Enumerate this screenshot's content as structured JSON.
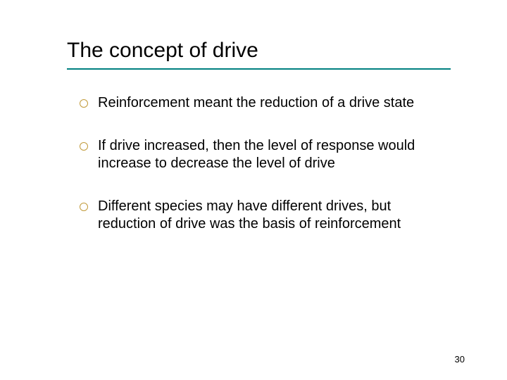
{
  "slide": {
    "title": "The concept of drive",
    "title_underline_color": "#008080",
    "bullet_ring_color": "#c19a3a",
    "bullets": [
      "Reinforcement meant the reduction of a drive state",
      "If drive increased, then the level of response would increase to decrease the level of drive",
      "Different species may have different drives, but reduction of drive was the basis of reinforcement"
    ],
    "page_number": "30",
    "background_color": "#ffffff",
    "text_color": "#000000",
    "title_fontsize": 30,
    "body_fontsize": 20,
    "pagenum_fontsize": 13
  }
}
